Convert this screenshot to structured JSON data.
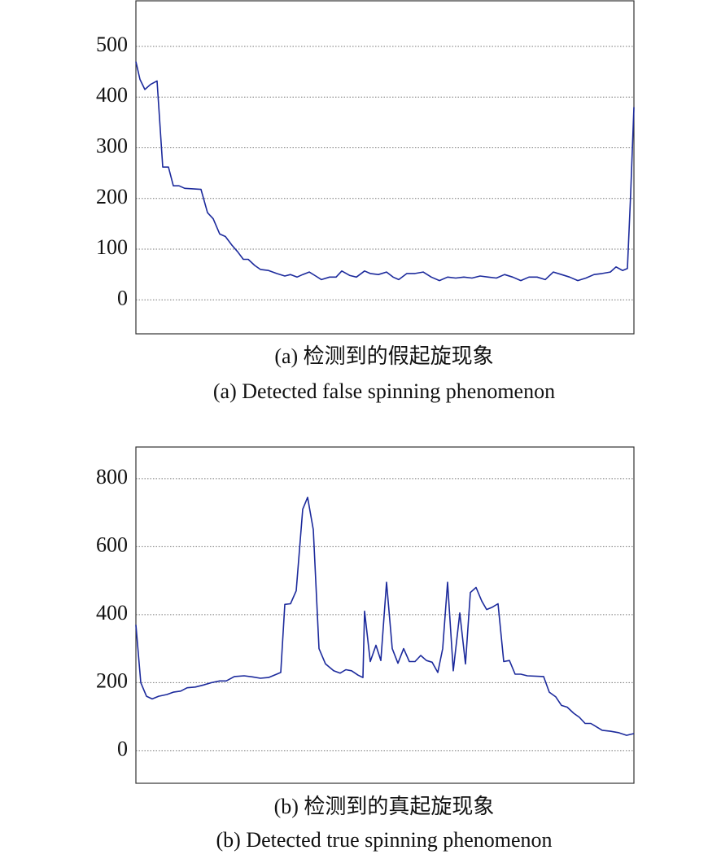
{
  "chart_data": [
    {
      "type": "line",
      "color": "#1c2a9c",
      "grid": true,
      "caption": [
        "(a) 检测到的假起旋现象",
        "(a) Detected false spinning phenomenon"
      ],
      "xlim": [
        0,
        612
      ],
      "ylim": [
        -67,
        590
      ],
      "yticks": [
        0,
        100,
        200,
        300,
        400,
        500
      ],
      "x": [
        0,
        5,
        11,
        18,
        26,
        33,
        40,
        46,
        53,
        60,
        80,
        88,
        95,
        103,
        110,
        118,
        125,
        132,
        138,
        146,
        153,
        163,
        173,
        183,
        190,
        198,
        205,
        213,
        221,
        228,
        238,
        246,
        253,
        263,
        271,
        281,
        288,
        298,
        308,
        316,
        323,
        333,
        343,
        353,
        363,
        373,
        383,
        393,
        403,
        413,
        423,
        433,
        443,
        453,
        463,
        473,
        483,
        493,
        503,
        513,
        523,
        533,
        543,
        553,
        563,
        573,
        583,
        590,
        598,
        604,
        608,
        612
      ],
      "values": [
        470,
        435,
        415,
        425,
        432,
        262,
        262,
        225,
        225,
        220,
        218,
        172,
        160,
        130,
        125,
        108,
        95,
        80,
        80,
        68,
        60,
        58,
        52,
        47,
        50,
        45,
        50,
        55,
        47,
        40,
        45,
        45,
        57,
        48,
        45,
        57,
        52,
        50,
        55,
        45,
        40,
        52,
        52,
        55,
        45,
        38,
        45,
        43,
        45,
        43,
        47,
        45,
        43,
        50,
        45,
        38,
        45,
        45,
        40,
        55,
        50,
        45,
        38,
        43,
        50,
        52,
        55,
        65,
        58,
        62,
        210,
        380
      ]
    },
    {
      "type": "line",
      "color": "#1c2a9c",
      "grid": true,
      "caption": [
        "(b) 检测到的真起旋现象",
        "(b) Detected true spinning phenomenon"
      ],
      "xlim": [
        0,
        612
      ],
      "ylim": [
        -96,
        893
      ],
      "yticks": [
        0,
        200,
        400,
        600,
        800
      ],
      "x": [
        0,
        6,
        13,
        20,
        28,
        38,
        46,
        55,
        63,
        73,
        83,
        93,
        103,
        111,
        121,
        133,
        143,
        153,
        163,
        173,
        178,
        183,
        190,
        197,
        205,
        211,
        218,
        225,
        233,
        243,
        251,
        258,
        265,
        273,
        279,
        281,
        288,
        295,
        301,
        308,
        315,
        322,
        329,
        336,
        343,
        350,
        357,
        364,
        371,
        377,
        383,
        390,
        398,
        405,
        411,
        418,
        425,
        431,
        438,
        445,
        452,
        459,
        466,
        473,
        481,
        501,
        508,
        516,
        523,
        530,
        538,
        545,
        552,
        559,
        566,
        573,
        583,
        593,
        603,
        608,
        612
      ],
      "values": [
        370,
        200,
        160,
        152,
        160,
        165,
        172,
        175,
        185,
        187,
        193,
        200,
        205,
        205,
        218,
        220,
        217,
        213,
        215,
        225,
        230,
        430,
        432,
        470,
        710,
        745,
        650,
        300,
        255,
        235,
        228,
        238,
        235,
        222,
        215,
        410,
        262,
        310,
        265,
        495,
        300,
        257,
        300,
        262,
        262,
        280,
        265,
        260,
        230,
        300,
        495,
        235,
        405,
        255,
        465,
        480,
        440,
        415,
        422,
        432,
        262,
        265,
        225,
        225,
        220,
        218,
        172,
        158,
        133,
        128,
        110,
        98,
        80,
        80,
        70,
        60,
        57,
        53,
        45,
        48,
        50
      ]
    }
  ]
}
